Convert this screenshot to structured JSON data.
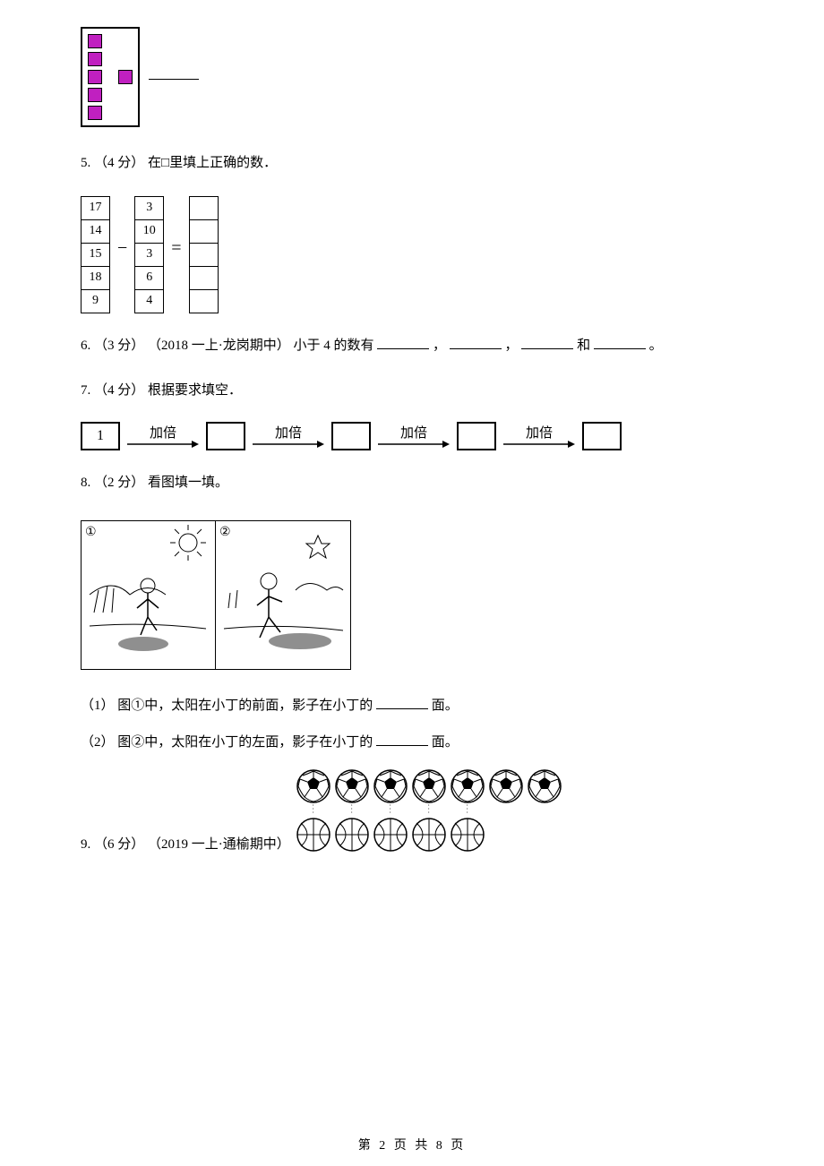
{
  "q4": {
    "blank_width": 56
  },
  "q5": {
    "number": "5.",
    "points": "（4 分）",
    "text": " 在□里填上正确的数．",
    "col1": [
      "17",
      "14",
      "15",
      "18",
      "9"
    ],
    "col2": [
      "3",
      "10",
      "3",
      "6",
      "4"
    ],
    "minus": "−",
    "equals": "="
  },
  "q6": {
    "number": "6.",
    "points": "（3 分）",
    "context": "（2018 一上·龙岗期中）",
    "text": "小于 4 的数有",
    "sep1": "，",
    "sep2": "，",
    "sep3": "和",
    "end": "。",
    "blank_width": 58
  },
  "q7": {
    "number": "7.",
    "points": "（4 分）",
    "text": " 根据要求填空．",
    "start": "1",
    "label": "加倍"
  },
  "q8": {
    "number": "8.",
    "points": "（2 分）",
    "text": " 看图填一填。",
    "panel1": "①",
    "panel2": "②",
    "sub1_num": "（1）",
    "sub1_text_a": " 图①中，太阳在小丁的前面，影子在小丁的",
    "sub1_text_b": "面。",
    "sub2_num": "（2）",
    "sub2_text_a": " 图②中，太阳在小丁的左面，影子在小丁的",
    "sub2_text_b": "面。",
    "blank_width": 58
  },
  "q9": {
    "number": "9.",
    "points": "（6 分）",
    "context": "（2019 一上·通榆期中）",
    "soccer_count": 7,
    "basketball_count": 5
  },
  "footer": {
    "text": "第 2 页 共 8 页"
  },
  "colors": {
    "magenta": "#c020c0",
    "black": "#000000"
  }
}
